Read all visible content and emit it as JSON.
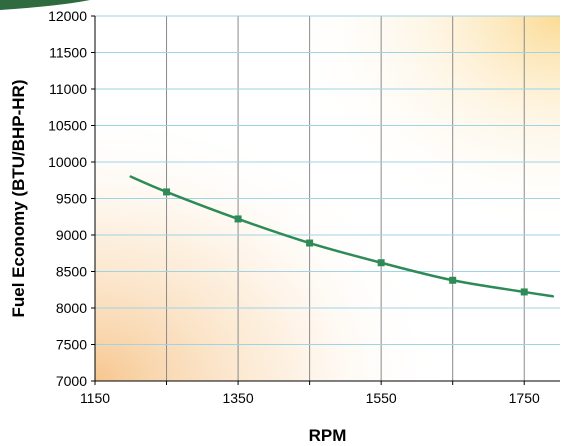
{
  "chart_data": {
    "type": "line",
    "title": "",
    "xlabel": "RPM",
    "ylabel": "Fuel Economy (BTU/BHP-HR)",
    "xlim": [
      1150,
      1800
    ],
    "ylim": [
      7000,
      12000
    ],
    "x_ticks": [
      "1150",
      "1350",
      "1550",
      "1750"
    ],
    "y_ticks": [
      "7000",
      "7500",
      "8000",
      "8500",
      "9000",
      "9500",
      "10000",
      "10500",
      "11000",
      "11500",
      "12000"
    ],
    "grid": true,
    "legend": "none",
    "series": [
      {
        "color": "#2e8b57",
        "x": [
          1200,
          1250,
          1350,
          1450,
          1550,
          1650,
          1750,
          1790
        ],
        "y": [
          9800,
          9590,
          9220,
          8890,
          8620,
          8380,
          8220,
          8160
        ],
        "markers": [
          false,
          true,
          true,
          true,
          true,
          true,
          true,
          false
        ]
      }
    ],
    "colors": {
      "line": "#2e8b57",
      "marker": "#2e8b57",
      "grid_horizontal": "#9fd3e6",
      "grid_vertical": "#8a8a8a",
      "background_glow": "#f7c98a"
    }
  }
}
